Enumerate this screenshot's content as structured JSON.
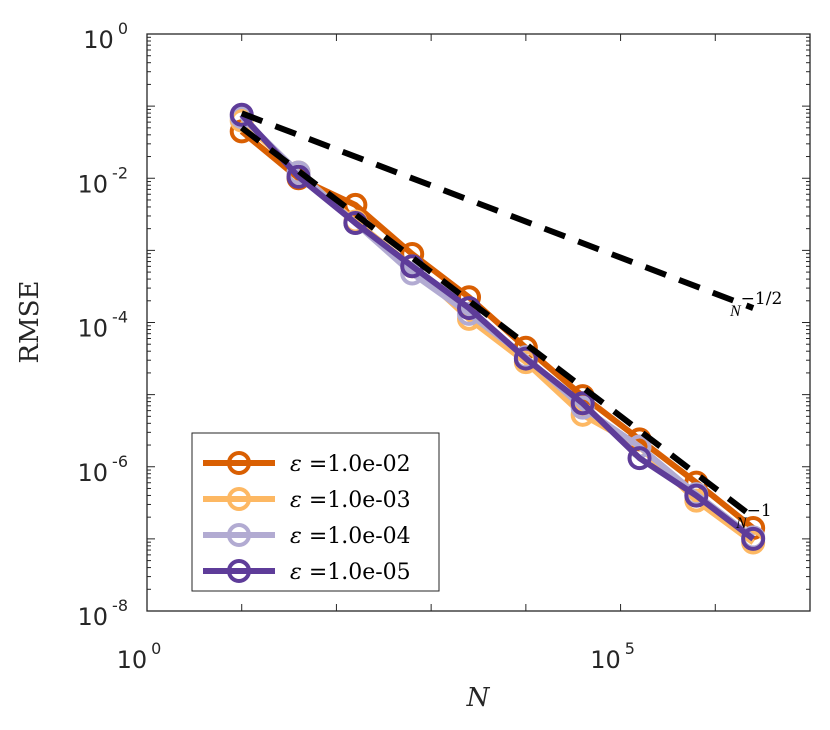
{
  "chart_data": {
    "type": "line",
    "xscale": "log",
    "yscale": "log",
    "xlim_exp": [
      0,
      7
    ],
    "ylim_exp": [
      -8,
      0
    ],
    "xlabel": "N",
    "ylabel": "RMSE",
    "x_ticks": [
      {
        "base": "10",
        "exp": "0",
        "value_exp": 0
      },
      {
        "base": "10",
        "exp": "5",
        "value_exp": 5
      }
    ],
    "y_ticks": [
      {
        "base": "10",
        "exp": "0",
        "value_exp": 0
      },
      {
        "base": "10",
        "exp": "-2",
        "value_exp": -2
      },
      {
        "base": "10",
        "exp": "-4",
        "value_exp": -4
      },
      {
        "base": "10",
        "exp": "-6",
        "value_exp": -6
      },
      {
        "base": "10",
        "exp": "-8",
        "value_exp": -8
      }
    ],
    "x_exp": [
      1,
      1.6,
      2.2,
      2.8,
      3.4,
      4.0,
      4.6,
      5.2,
      5.8,
      6.4
    ],
    "series": [
      {
        "name": "ε =1.0e-02",
        "legend_text": "=1.0e-02",
        "color": "#d95f02",
        "y_exp": [
          -1.35,
          -2.0,
          -2.37,
          -3.05,
          -3.65,
          -4.35,
          -5.02,
          -5.62,
          -6.22,
          -6.85
        ]
      },
      {
        "name": "ε =1.0e-03",
        "legend_text": "=1.0e-03",
        "color": "#fdb863",
        "y_exp": [
          -1.2,
          -1.92,
          -2.6,
          -3.22,
          -3.95,
          -4.55,
          -5.28,
          -5.72,
          -6.47,
          -7.05
        ]
      },
      {
        "name": "ε =1.0e-04",
        "legend_text": "=1.0e-04",
        "color": "#b2abd2",
        "y_exp": [
          -1.15,
          -1.92,
          -2.62,
          -3.32,
          -3.88,
          -4.48,
          -5.18,
          -5.72,
          -6.38,
          -6.98
        ]
      },
      {
        "name": "ε =1.0e-05",
        "legend_text": "=1.0e-05",
        "color": "#5e3c99",
        "y_exp": [
          -1.12,
          -1.98,
          -2.62,
          -3.22,
          -3.8,
          -4.5,
          -5.12,
          -5.88,
          -6.4,
          -7.0
        ]
      }
    ],
    "reference_lines": [
      {
        "label_base": "N",
        "label_exp": "−1/2",
        "x_exp": [
          1,
          6.4
        ],
        "y_exp": [
          -1.1,
          -3.8
        ]
      },
      {
        "label_base": "N",
        "label_exp": "−1",
        "x_exp": [
          1,
          6.4
        ],
        "y_exp": [
          -1.3,
          -6.7
        ]
      }
    ],
    "legend": {
      "position": "bottom-left",
      "symbol": "ε"
    }
  }
}
